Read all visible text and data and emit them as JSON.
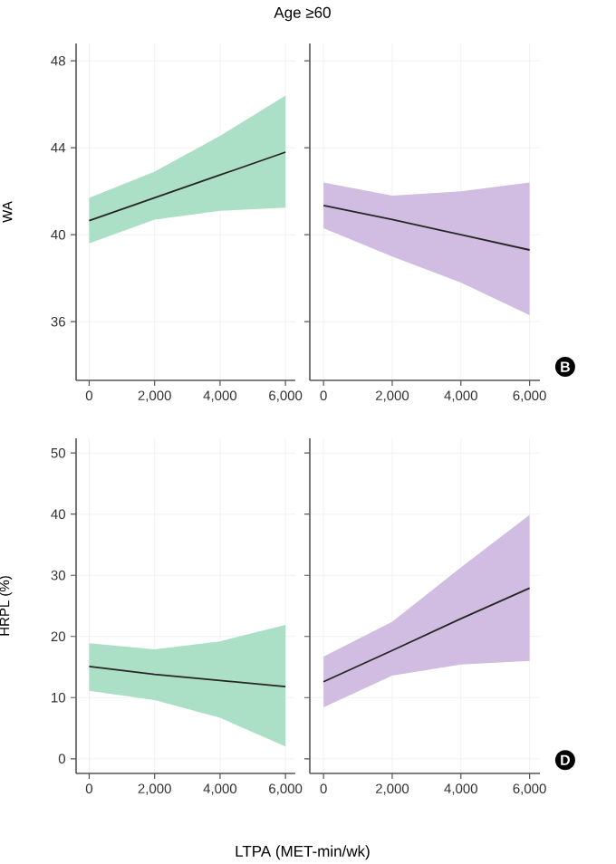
{
  "chart_data": [
    {
      "type": "line",
      "title": "Age ≥60",
      "ylabel": "WA",
      "x": [
        0,
        2000,
        4000,
        6000
      ],
      "xlim": [
        -400,
        6300
      ],
      "ylim": [
        33.3,
        48.8
      ],
      "xticks": [
        0,
        {
          "value": 2000,
          "label": "2,000"
        },
        {
          "value": 4000,
          "label": "4,000"
        },
        {
          "value": 6000,
          "label": "6,000"
        }
      ],
      "yticks": [
        36,
        40,
        44,
        48
      ],
      "grid": true,
      "marker": "none",
      "line_style": "solid",
      "colors": [
        "#abdfc6"
      ],
      "series": [
        {
          "color": "#262626",
          "values": [
            40.65,
            41.7,
            42.75,
            43.8
          ],
          "lower": [
            39.6,
            40.7,
            41.1,
            41.25
          ],
          "upper": [
            41.7,
            42.9,
            44.55,
            46.4
          ]
        }
      ]
    },
    {
      "type": "line",
      "tick_labels": "x",
      "annotations": [
        "B"
      ],
      "x": [
        0,
        2000,
        4000,
        6000
      ],
      "xlim": [
        -400,
        6300
      ],
      "ylim": [
        33.3,
        48.8
      ],
      "xticks": [
        0,
        {
          "value": 2000,
          "label": "2,000"
        },
        {
          "value": 4000,
          "label": "4,000"
        },
        {
          "value": 6000,
          "label": "6,000"
        }
      ],
      "yticks": [
        36,
        40,
        44,
        48
      ],
      "grid": true,
      "marker": "none",
      "line_style": "solid",
      "colors": [
        "#d2bde2"
      ],
      "series": [
        {
          "color": "#262626",
          "values": [
            41.35,
            40.7,
            40.0,
            39.3
          ],
          "lower": [
            40.3,
            39.0,
            37.8,
            36.3
          ],
          "upper": [
            42.4,
            41.8,
            42.0,
            42.4
          ]
        }
      ]
    },
    {
      "type": "line",
      "ylabel": "HRPL (%)",
      "xlabel": "LTPA (MET-min/wk)",
      "x": [
        0,
        2000,
        4000,
        6000
      ],
      "xlim": [
        -400,
        6300
      ],
      "ylim": [
        -2.4,
        52.4
      ],
      "xticks": [
        0,
        {
          "value": 2000,
          "label": "2,000"
        },
        {
          "value": 4000,
          "label": "4,000"
        },
        {
          "value": 6000,
          "label": "6,000"
        }
      ],
      "yticks": [
        0,
        10,
        20,
        30,
        40,
        50
      ],
      "grid": true,
      "marker": "none",
      "line_style": "solid",
      "colors": [
        "#abdfc6"
      ],
      "series": [
        {
          "color": "#262626",
          "values": [
            15.1,
            13.8,
            12.8,
            11.8
          ],
          "lower": [
            11.1,
            9.6,
            6.7,
            2.0
          ],
          "upper": [
            18.9,
            17.9,
            19.2,
            21.9
          ]
        }
      ]
    },
    {
      "type": "line",
      "tick_labels": "x",
      "annotations": [
        "D"
      ],
      "x": [
        0,
        2000,
        4000,
        6000
      ],
      "xlim": [
        -400,
        6300
      ],
      "ylim": [
        -2.4,
        52.4
      ],
      "xticks": [
        0,
        {
          "value": 2000,
          "label": "2,000"
        },
        {
          "value": 4000,
          "label": "4,000"
        },
        {
          "value": 6000,
          "label": "6,000"
        }
      ],
      "yticks": [
        0,
        10,
        20,
        30,
        40,
        50
      ],
      "grid": true,
      "marker": "none",
      "line_style": "solid",
      "colors": [
        "#d2bde2"
      ],
      "series": [
        {
          "color": "#262626",
          "values": [
            12.6,
            17.7,
            22.9,
            27.9
          ],
          "lower": [
            8.4,
            13.6,
            15.4,
            16.0
          ],
          "upper": [
            16.7,
            22.4,
            31.3,
            39.9
          ]
        }
      ]
    }
  ]
}
